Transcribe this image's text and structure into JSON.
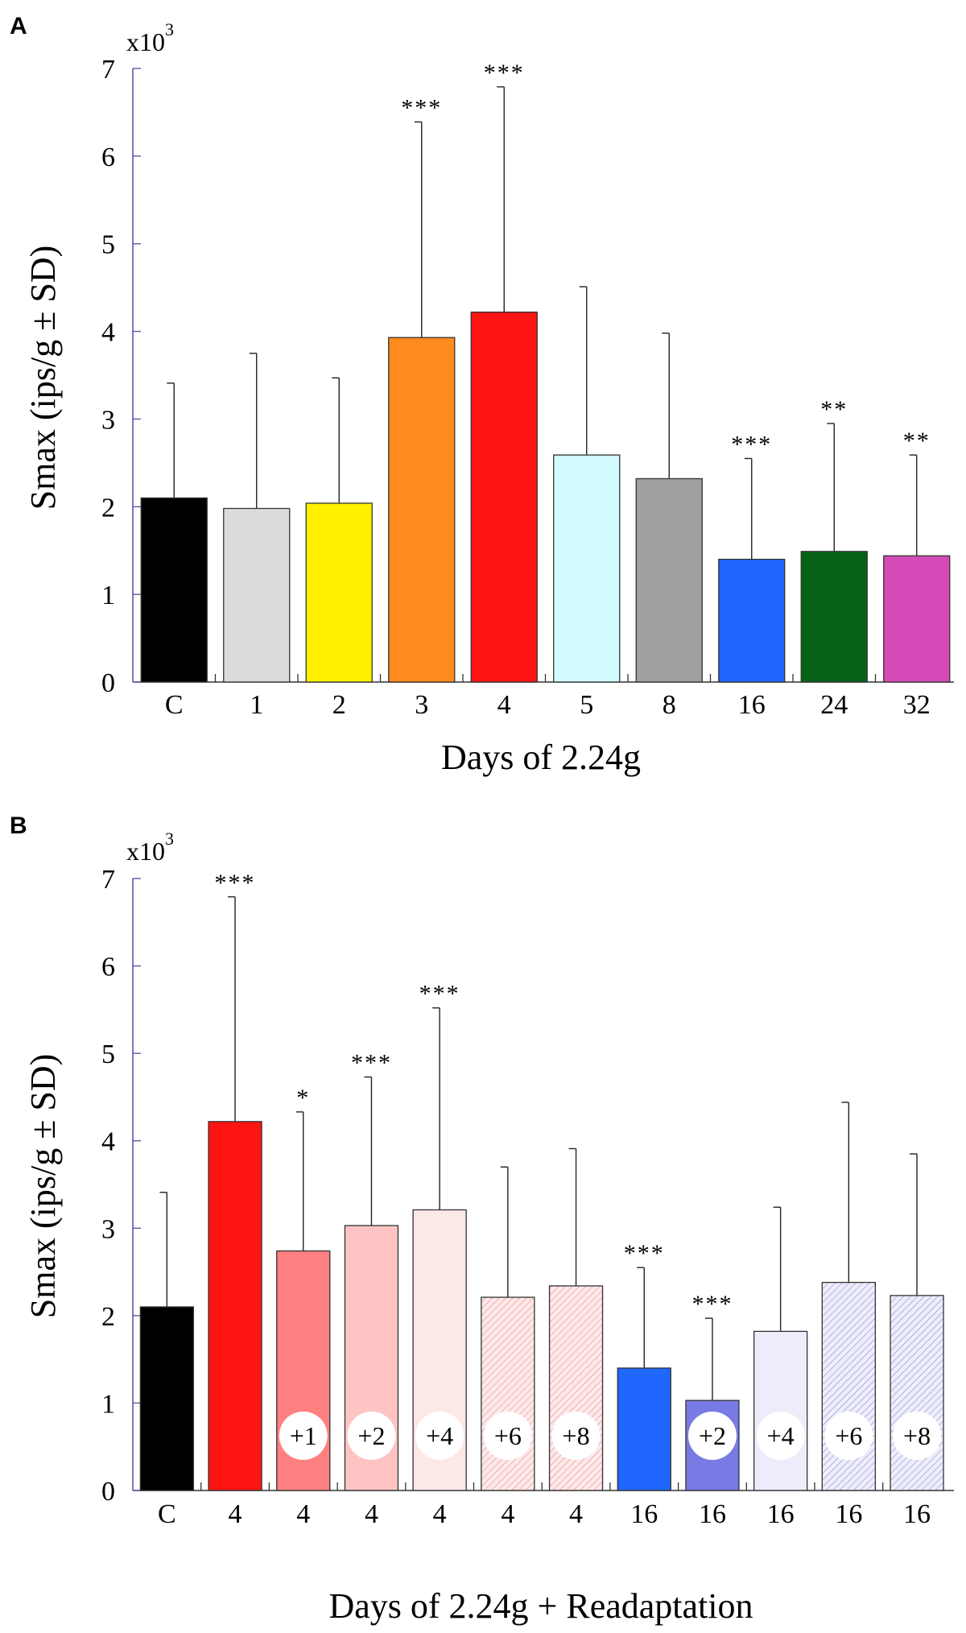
{
  "chart_data": [
    {
      "panel": "A",
      "type": "bar",
      "scale_label": "x10",
      "scale_exponent": "3",
      "ylabel": "Smax (ips/g ± SD)",
      "xlabel": "Days of 2.24g",
      "ylim": [
        0,
        7
      ],
      "yticks": [
        "0",
        "1",
        "2",
        "3",
        "4",
        "5",
        "6",
        "7"
      ],
      "categories": [
        "C",
        "1",
        "2",
        "3",
        "4",
        "5",
        "8",
        "16",
        "24",
        "32"
      ],
      "values": [
        2.1,
        1.98,
        2.04,
        3.93,
        4.22,
        2.59,
        2.32,
        1.4,
        1.49,
        1.44
      ],
      "errors": [
        1.31,
        1.77,
        1.43,
        2.46,
        2.57,
        1.92,
        1.66,
        1.15,
        1.46,
        1.15
      ],
      "significance": [
        "",
        "",
        "",
        "***",
        "***",
        "",
        "",
        "***",
        "**",
        "**"
      ],
      "colors": [
        "#000000",
        "#dcdcdc",
        "#fff200",
        "#ff8a1e",
        "#ff1414",
        "#d2fbff",
        "#a0a0a0",
        "#2067ff",
        "#066316",
        "#d54ab7"
      ],
      "patterns": [
        "none",
        "none",
        "none",
        "none",
        "none",
        "none",
        "none",
        "none",
        "none",
        "none"
      ],
      "bubbles": [
        "",
        "",
        "",
        "",
        "",
        "",
        "",
        "",
        "",
        ""
      ]
    },
    {
      "panel": "B",
      "type": "bar",
      "scale_label": "x10",
      "scale_exponent": "3",
      "ylabel": "Smax (ips/g ± SD)",
      "xlabel": "Days of 2.24g + Readaptation",
      "ylim": [
        0,
        7
      ],
      "yticks": [
        "0",
        "1",
        "2",
        "3",
        "4",
        "5",
        "6",
        "7"
      ],
      "categories": [
        "C",
        "4",
        "4",
        "4",
        "4",
        "4",
        "4",
        "16",
        "16",
        "16",
        "16",
        "16"
      ],
      "values": [
        2.1,
        4.22,
        2.74,
        3.03,
        3.21,
        2.21,
        2.34,
        1.4,
        1.03,
        1.82,
        2.38,
        2.23
      ],
      "errors": [
        1.31,
        2.57,
        1.59,
        1.7,
        2.31,
        1.49,
        1.57,
        1.15,
        0.94,
        1.42,
        2.06,
        1.62
      ],
      "significance": [
        "",
        "***",
        "*",
        "***",
        "***",
        "",
        "",
        "***",
        "***",
        "",
        "",
        ""
      ],
      "colors": [
        "#000000",
        "#ff1414",
        "#fe8080",
        "#fec4c4",
        "#fde8e8",
        "#fbe6e6",
        "#fbe6e6",
        "#2067ff",
        "#7a7ae4",
        "#ececfb",
        "#ececfb",
        "#ececfb"
      ],
      "patterns": [
        "none",
        "none",
        "none",
        "none",
        "none",
        "hatch-red",
        "hatch-red",
        "none",
        "none",
        "none",
        "hatch-blue",
        "hatch-blue"
      ],
      "bubbles": [
        "",
        "",
        "+1",
        "+2",
        "+4",
        "+6",
        "+8",
        "",
        "+2",
        "+4",
        "+6",
        "+8"
      ]
    }
  ]
}
